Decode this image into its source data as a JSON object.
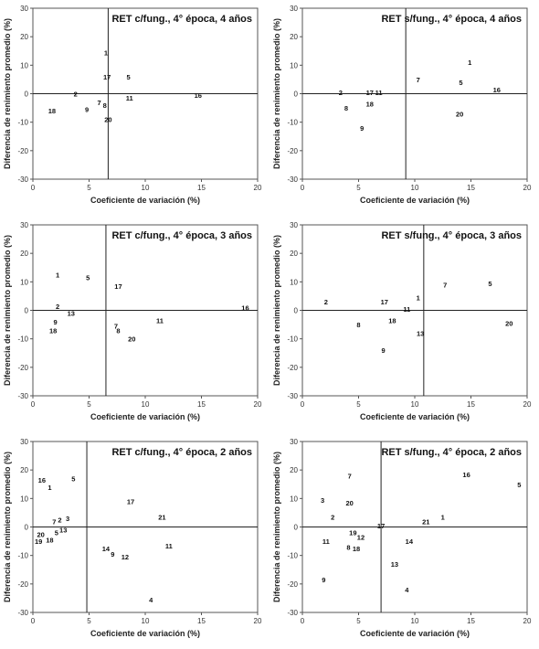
{
  "chart_data": [
    {
      "type": "scatter",
      "title": "RET c/fung., 4° época, 4 años",
      "xlabel": "Coeficiente de variación (%)",
      "ylabel": "Diferencia de renimiento promedio (%)",
      "xlim": [
        0,
        20
      ],
      "ylim": [
        -30,
        30
      ],
      "xticks": [
        0,
        5,
        10,
        15,
        20
      ],
      "yticks": [
        -30,
        -20,
        -10,
        0,
        10,
        20,
        30
      ],
      "ref_x": 6.7,
      "ref_y": 0,
      "points": [
        {
          "label": "1",
          "x": 6.5,
          "y": 14.5
        },
        {
          "label": "17",
          "x": 6.6,
          "y": 6
        },
        {
          "label": "5",
          "x": 8.5,
          "y": 6
        },
        {
          "label": "2",
          "x": 3.8,
          "y": 0
        },
        {
          "label": "7",
          "x": 5.9,
          "y": -3
        },
        {
          "label": "8",
          "x": 6.4,
          "y": -4
        },
        {
          "label": "11",
          "x": 8.6,
          "y": -1.5
        },
        {
          "label": "16",
          "x": 14.7,
          "y": -0.5
        },
        {
          "label": "18",
          "x": 1.7,
          "y": -6
        },
        {
          "label": "9",
          "x": 4.8,
          "y": -5.5
        },
        {
          "label": "20",
          "x": 6.7,
          "y": -9
        }
      ]
    },
    {
      "type": "scatter",
      "title": "RET s/fung., 4° época, 4 años",
      "xlabel": "Coeficiente de variación (%)",
      "ylabel": "Diferencia de renimiento promedio (%)",
      "xlim": [
        0,
        20
      ],
      "ylim": [
        -30,
        30
      ],
      "xticks": [
        0,
        5,
        10,
        15,
        20
      ],
      "yticks": [
        -30,
        -20,
        -10,
        0,
        10,
        20,
        30
      ],
      "ref_x": 9.2,
      "ref_y": 0,
      "points": [
        {
          "label": "1",
          "x": 14.9,
          "y": 11
        },
        {
          "label": "7",
          "x": 10.3,
          "y": 5
        },
        {
          "label": "5",
          "x": 14.1,
          "y": 4
        },
        {
          "label": "16",
          "x": 17.3,
          "y": 1.5
        },
        {
          "label": "2",
          "x": 3.4,
          "y": 0.5
        },
        {
          "label": "17",
          "x": 6,
          "y": 0.5
        },
        {
          "label": "11",
          "x": 6.8,
          "y": 0.5
        },
        {
          "label": "18",
          "x": 6,
          "y": -3.5
        },
        {
          "label": "8",
          "x": 3.9,
          "y": -5
        },
        {
          "label": "20",
          "x": 14,
          "y": -7
        },
        {
          "label": "9",
          "x": 5.3,
          "y": -12
        }
      ]
    },
    {
      "type": "scatter",
      "title": "RET c/fung., 4° época, 3 años",
      "xlabel": "Coeficiente de variación (%)",
      "ylabel": "Diferencia de renimiento promedio (%)",
      "xlim": [
        0,
        20
      ],
      "ylim": [
        -30,
        30
      ],
      "xticks": [
        0,
        5,
        10,
        15,
        20
      ],
      "yticks": [
        -30,
        -20,
        -10,
        0,
        10,
        20,
        30
      ],
      "ref_x": 6.5,
      "ref_y": 0,
      "points": [
        {
          "label": "1",
          "x": 2.2,
          "y": 12.5
        },
        {
          "label": "5",
          "x": 4.9,
          "y": 11.5
        },
        {
          "label": "17",
          "x": 7.6,
          "y": 8.5
        },
        {
          "label": "16",
          "x": 18.9,
          "y": 1
        },
        {
          "label": "2",
          "x": 2.2,
          "y": 1.5
        },
        {
          "label": "13",
          "x": 3.4,
          "y": -1
        },
        {
          "label": "11",
          "x": 11.3,
          "y": -3.5
        },
        {
          "label": "9",
          "x": 2,
          "y": -4
        },
        {
          "label": "18",
          "x": 1.8,
          "y": -7
        },
        {
          "label": "7",
          "x": 7.4,
          "y": -5.5
        },
        {
          "label": "8",
          "x": 7.6,
          "y": -7
        },
        {
          "label": "20",
          "x": 8.8,
          "y": -10
        }
      ]
    },
    {
      "type": "scatter",
      "title": "RET s/fung., 4° época, 3 años",
      "xlabel": "Coeficiente de variación (%)",
      "ylabel": "Diferencia de renimiento promedio (%)",
      "xlim": [
        0,
        20
      ],
      "ylim": [
        -30,
        30
      ],
      "xticks": [
        0,
        5,
        10,
        15,
        20
      ],
      "yticks": [
        -30,
        -20,
        -10,
        0,
        10,
        20,
        30
      ],
      "ref_x": 10.8,
      "ref_y": 0,
      "points": [
        {
          "label": "2",
          "x": 2.1,
          "y": 3
        },
        {
          "label": "17",
          "x": 7.3,
          "y": 3
        },
        {
          "label": "1",
          "x": 10.3,
          "y": 4.5
        },
        {
          "label": "7",
          "x": 12.7,
          "y": 9
        },
        {
          "label": "5",
          "x": 16.7,
          "y": 9.5
        },
        {
          "label": "11",
          "x": 9.3,
          "y": 0.5
        },
        {
          "label": "18",
          "x": 8,
          "y": -3.5
        },
        {
          "label": "8",
          "x": 5,
          "y": -5
        },
        {
          "label": "20",
          "x": 18.4,
          "y": -4.5
        },
        {
          "label": "13",
          "x": 10.5,
          "y": -8
        },
        {
          "label": "9",
          "x": 7.2,
          "y": -14
        }
      ]
    },
    {
      "type": "scatter",
      "title": "RET c/fung., 4° época, 2 años",
      "xlabel": "Coeficiente de variación (%)",
      "ylabel": "Diferencia de renimiento promedio (%)",
      "xlim": [
        0,
        20
      ],
      "ylim": [
        -30,
        30
      ],
      "xticks": [
        0,
        5,
        10,
        15,
        20
      ],
      "yticks": [
        -30,
        -20,
        -10,
        0,
        10,
        20,
        30
      ],
      "ref_x": 4.8,
      "ref_y": 0,
      "points": [
        {
          "label": "16",
          "x": 0.8,
          "y": 16.5
        },
        {
          "label": "5",
          "x": 3.6,
          "y": 17
        },
        {
          "label": "1",
          "x": 1.5,
          "y": 14
        },
        {
          "label": "17",
          "x": 8.7,
          "y": 9
        },
        {
          "label": "21",
          "x": 11.5,
          "y": 3.5
        },
        {
          "label": "7",
          "x": 1.9,
          "y": 2
        },
        {
          "label": "2",
          "x": 2.4,
          "y": 2.5
        },
        {
          "label": "3",
          "x": 3.1,
          "y": 3
        },
        {
          "label": "13",
          "x": 2.7,
          "y": -1
        },
        {
          "label": "5",
          "x": 2.1,
          "y": -2
        },
        {
          "label": "20",
          "x": 0.7,
          "y": -2.5
        },
        {
          "label": "19",
          "x": 0.5,
          "y": -5
        },
        {
          "label": "18",
          "x": 1.5,
          "y": -4.5
        },
        {
          "label": "14",
          "x": 6.5,
          "y": -7.5
        },
        {
          "label": "9",
          "x": 7.1,
          "y": -9.5
        },
        {
          "label": "12",
          "x": 8.2,
          "y": -10.5
        },
        {
          "label": "11",
          "x": 12.1,
          "y": -6.5
        },
        {
          "label": "4",
          "x": 10.5,
          "y": -25.5
        }
      ]
    },
    {
      "type": "scatter",
      "title": "RET s/fung., 4° época, 2 años",
      "xlabel": "Coeficiente de variación (%)",
      "ylabel": "Diferencia de renimiento promedio (%)",
      "xlim": [
        0,
        20
      ],
      "ylim": [
        -30,
        30
      ],
      "xticks": [
        0,
        5,
        10,
        15,
        20
      ],
      "yticks": [
        -30,
        -20,
        -10,
        0,
        10,
        20,
        30
      ],
      "ref_x": 7,
      "ref_y": 0,
      "points": [
        {
          "label": "7",
          "x": 4.2,
          "y": 18
        },
        {
          "label": "16",
          "x": 14.6,
          "y": 18.5
        },
        {
          "label": "5",
          "x": 19.3,
          "y": 15
        },
        {
          "label": "3",
          "x": 1.8,
          "y": 9.5
        },
        {
          "label": "20",
          "x": 4.2,
          "y": 8.5
        },
        {
          "label": "2",
          "x": 2.7,
          "y": 3.5
        },
        {
          "label": "1",
          "x": 12.5,
          "y": 3.5
        },
        {
          "label": "21",
          "x": 11,
          "y": 2
        },
        {
          "label": "17",
          "x": 7,
          "y": 0.5
        },
        {
          "label": "19",
          "x": 4.5,
          "y": -2
        },
        {
          "label": "12",
          "x": 5.2,
          "y": -3.5
        },
        {
          "label": "11",
          "x": 2.1,
          "y": -5
        },
        {
          "label": "8",
          "x": 4.1,
          "y": -7
        },
        {
          "label": "18",
          "x": 4.8,
          "y": -7.5
        },
        {
          "label": "14",
          "x": 9.5,
          "y": -5
        },
        {
          "label": "13",
          "x": 8.2,
          "y": -13
        },
        {
          "label": "9",
          "x": 1.9,
          "y": -18.5
        },
        {
          "label": "4",
          "x": 9.3,
          "y": -22
        }
      ]
    }
  ]
}
